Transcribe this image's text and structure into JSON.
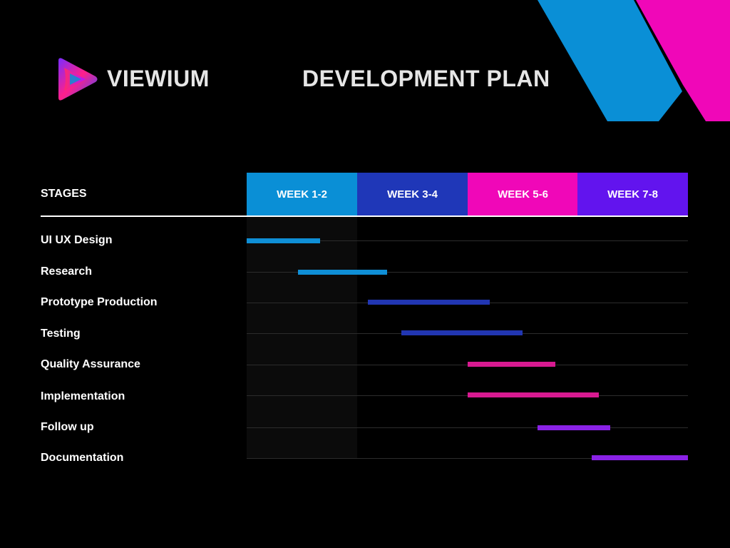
{
  "brand": {
    "name": "VIEWIUM",
    "icon": "play-logo-icon"
  },
  "title": "DEVELOPMENT PLAN",
  "colors": {
    "background": "#000000",
    "blue": "#0a8fd6",
    "navy": "#1f37b8",
    "pink": "#f007b8",
    "purple": "#6214ee",
    "bar_blue": "#0f8fd6",
    "bar_navy": "#2136b2",
    "bar_pink": "#d81a91",
    "bar_purple": "#8a22e6"
  },
  "chart_data": {
    "type": "gantt",
    "stages_header": "STAGES",
    "weeks": [
      {
        "label": "WEEK 1-2",
        "color": "#0a8fd6"
      },
      {
        "label": "WEEK 3-4",
        "color": "#1f37b8"
      },
      {
        "label": "WEEK 5-6",
        "color": "#f007b8"
      },
      {
        "label": "WEEK 7-8",
        "color": "#6214ee"
      }
    ],
    "x_range": [
      0,
      8
    ],
    "tasks": [
      {
        "name": "UI UX Design",
        "start": 0.0,
        "end": 1.33,
        "color": "#0f8fd6"
      },
      {
        "name": "Research",
        "start": 0.93,
        "end": 2.54,
        "color": "#0f8fd6"
      },
      {
        "name": "Prototype Production",
        "start": 2.2,
        "end": 4.41,
        "color": "#2136b2"
      },
      {
        "name": "Testing",
        "start": 2.8,
        "end": 5.0,
        "color": "#2136b2"
      },
      {
        "name": "Quality Assurance",
        "start": 4.0,
        "end": 5.59,
        "color": "#d81a91"
      },
      {
        "name": "Implementation",
        "start": 4.0,
        "end": 6.38,
        "color": "#d81a91"
      },
      {
        "name": "Follow up",
        "start": 5.27,
        "end": 6.59,
        "color": "#8a22e6"
      },
      {
        "name": "Documentation",
        "start": 6.26,
        "end": 8.0,
        "color": "#8a22e6"
      }
    ]
  }
}
